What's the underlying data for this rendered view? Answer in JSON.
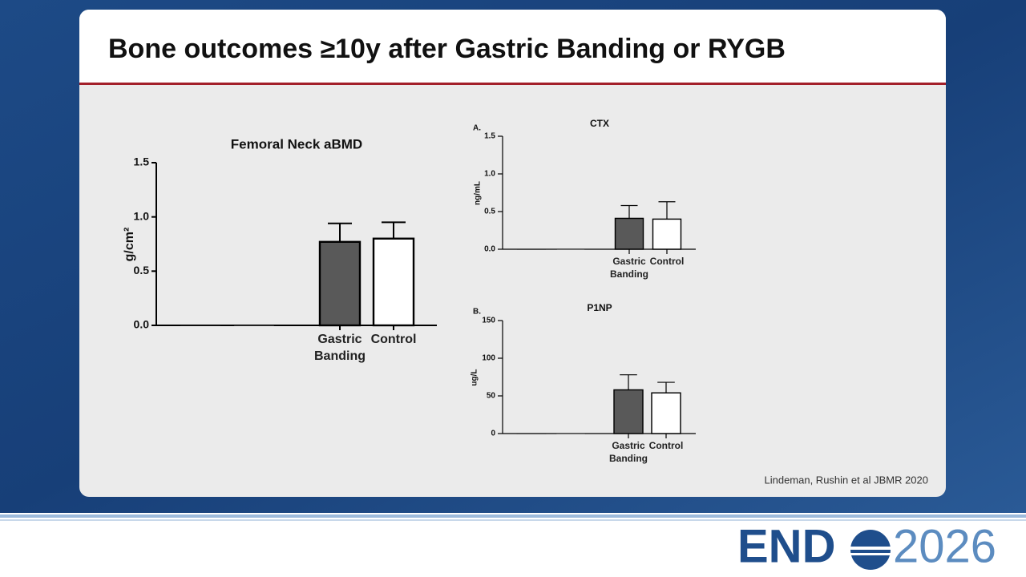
{
  "slide": {
    "title": "Bone outcomes ≥10y after Gastric Banding or RYGB",
    "citation": "Lindeman, Rushin et al JBMR 2020",
    "logo_left": "END",
    "logo_right": "2026"
  },
  "chart_data": [
    {
      "type": "bar",
      "title": "Femoral Neck aBMD",
      "y_label": "g/cm²",
      "categories": [
        null,
        null,
        "Gastric Banding",
        "Control"
      ],
      "values": [
        0,
        0,
        0.77,
        0.8
      ],
      "errors": [
        null,
        null,
        0.17,
        0.15
      ],
      "colors": [
        "#595959",
        "#ffffff",
        "#595959",
        "#ffffff"
      ],
      "ylim": [
        0,
        1.5
      ],
      "yticks": [
        {
          "value": 0,
          "label": "0.0"
        },
        {
          "value": 0.5,
          "label": "0.5"
        },
        {
          "value": 1,
          "label": "1.0"
        },
        {
          "value": 1.5,
          "label": "1.5"
        }
      ]
    },
    {
      "type": "bar",
      "panel": "A.",
      "title": "CTX",
      "y_label": "ng/mL",
      "categories": [
        null,
        null,
        "Gastric Banding",
        "Control"
      ],
      "values": [
        0,
        0,
        0.41,
        0.4
      ],
      "errors": [
        null,
        null,
        0.17,
        0.23
      ],
      "colors": [
        "#595959",
        "#ffffff",
        "#595959",
        "#ffffff"
      ],
      "ylim": [
        0,
        1.5
      ],
      "yticks": [
        {
          "value": 0,
          "label": "0.0"
        },
        {
          "value": 0.5,
          "label": "0.5"
        },
        {
          "value": 1,
          "label": "1.0"
        },
        {
          "value": 1.5,
          "label": "1.5"
        }
      ]
    },
    {
      "type": "bar",
      "panel": "B.",
      "title": "P1NP",
      "y_label": "ug/L",
      "categories": [
        null,
        null,
        "Gastric Banding",
        "Control"
      ],
      "values": [
        0,
        0,
        58,
        54
      ],
      "errors": [
        null,
        null,
        20,
        14
      ],
      "colors": [
        "#595959",
        "#ffffff",
        "#595959",
        "#ffffff"
      ],
      "ylim": [
        0,
        150
      ],
      "yticks": [
        0,
        50,
        100,
        150
      ]
    }
  ]
}
